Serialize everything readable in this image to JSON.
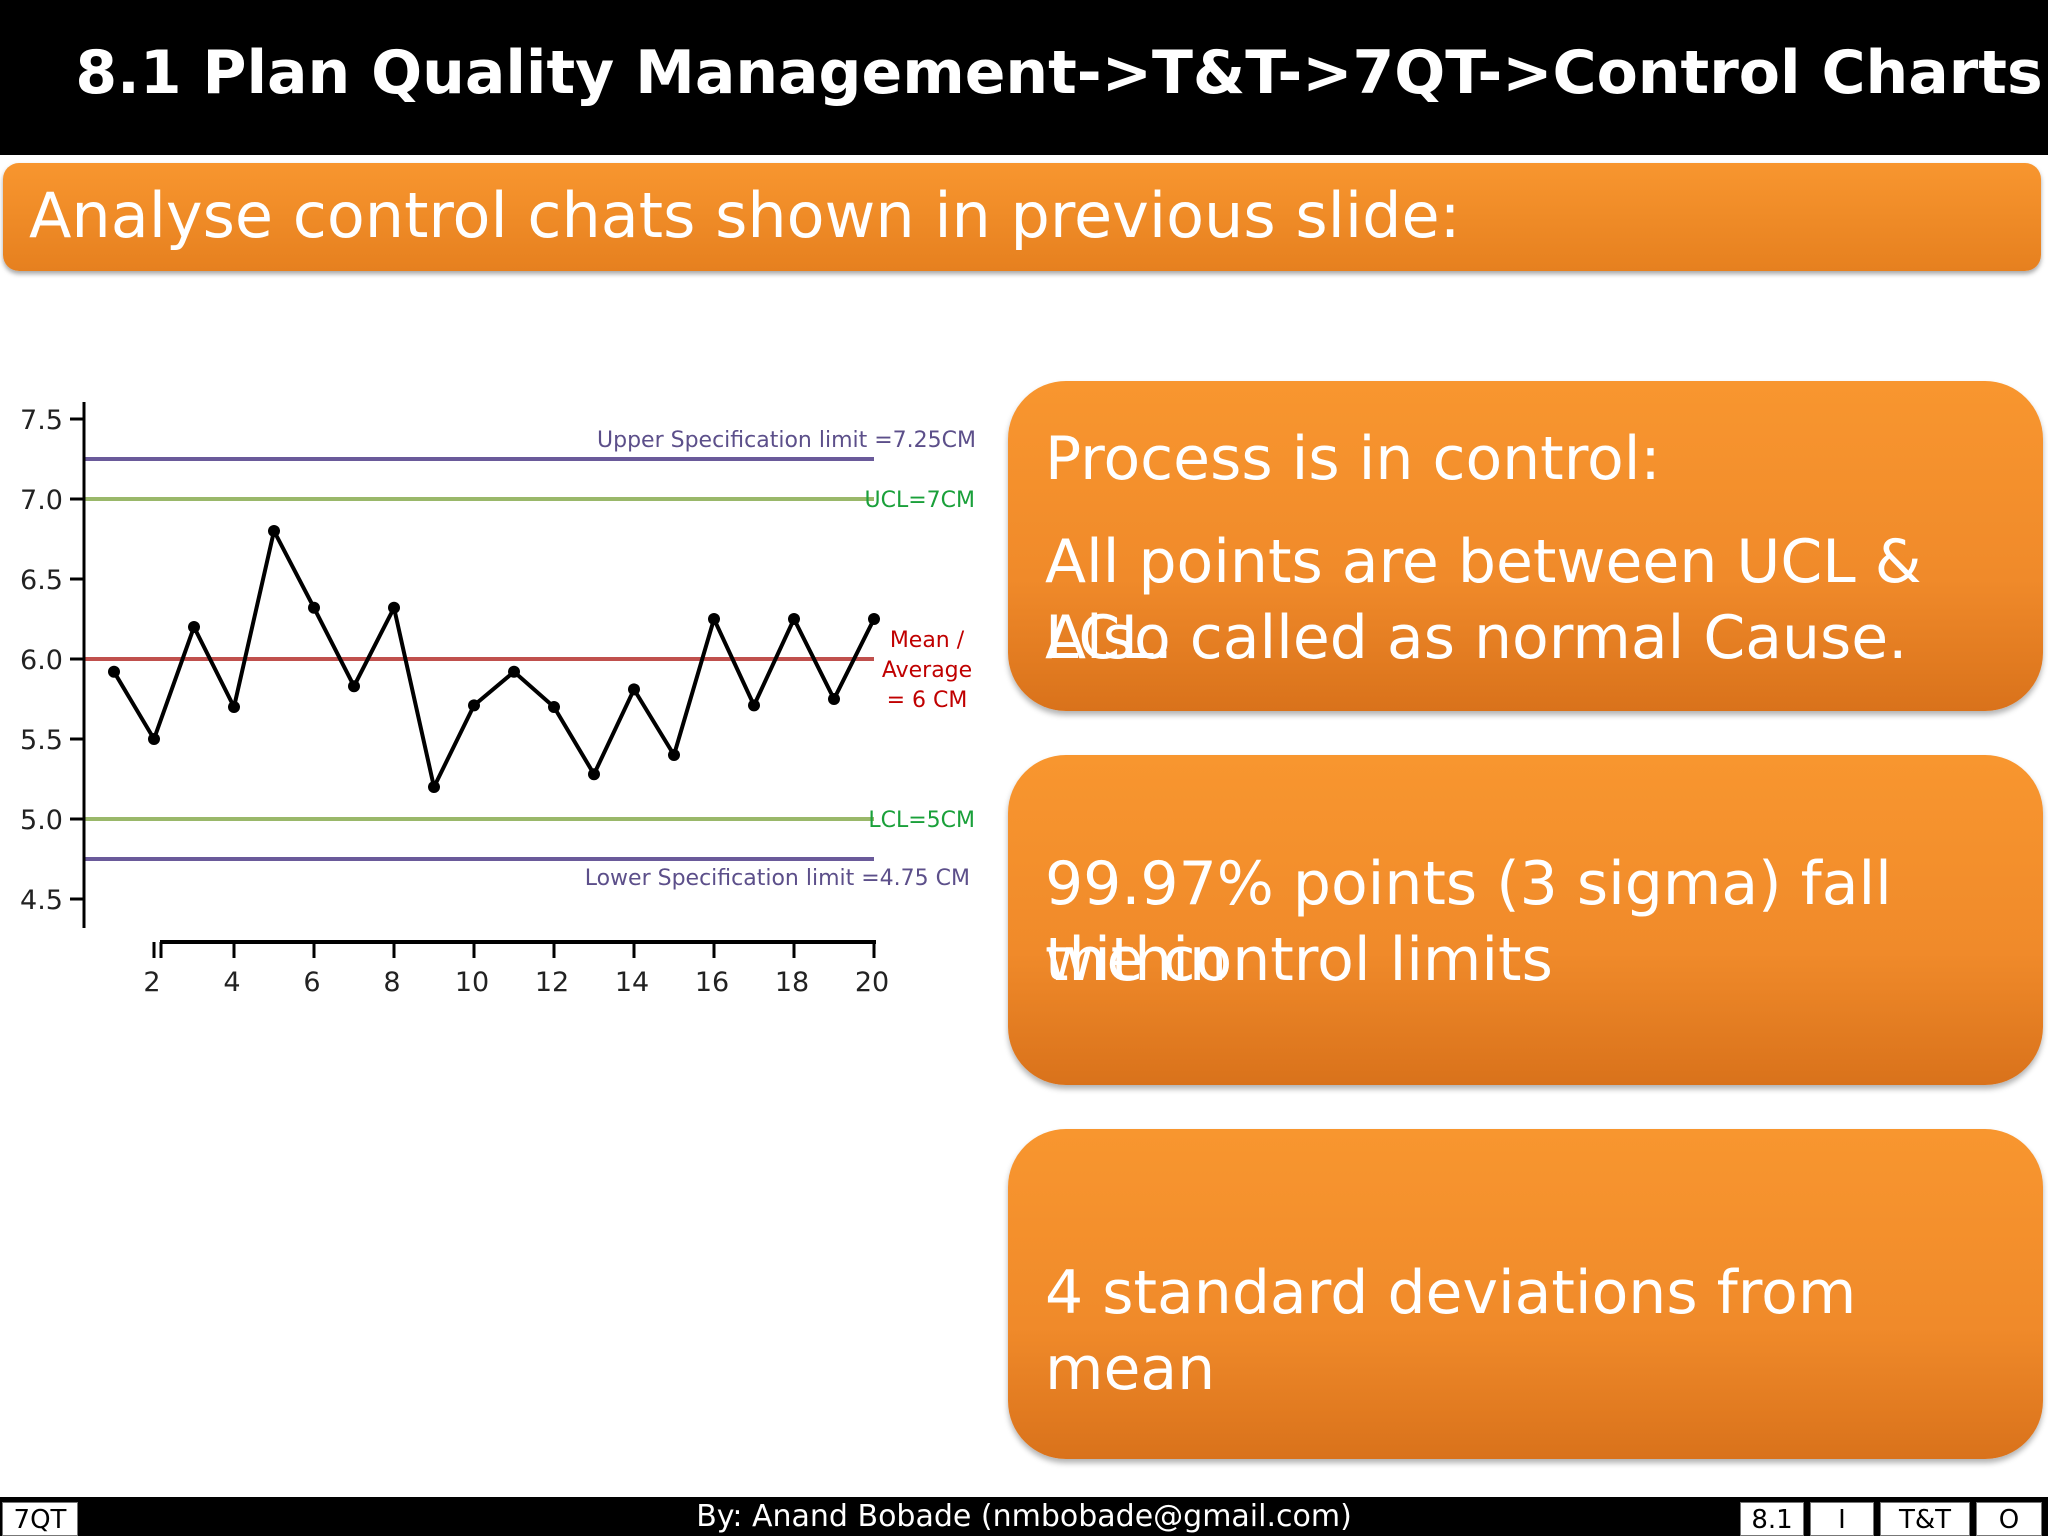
{
  "slide": {
    "title": "8.1 Plan Quality Management->T&T->7QT->Control Charts",
    "banner": "Analyse control chats shown in previous slide:",
    "box1": {
      "line1": "Process is in control:",
      "line2": "All points are between UCL & LCL.",
      "line3": "Also called as normal Cause."
    },
    "box2": {
      "line1": "99.97% points (3 sigma) fall within",
      "line2": "the control limits"
    },
    "box3": {
      "line1": "4 standard deviations from mean"
    },
    "footer": {
      "left": "7QT",
      "credit": "By: Anand Bobade (nmbobade@gmail.com)",
      "tabs": [
        "8.1",
        "I",
        "T&T",
        "O"
      ]
    }
  },
  "chart_data": {
    "type": "line",
    "x": [
      1,
      2,
      3,
      4,
      5,
      6,
      7,
      8,
      9,
      10,
      11,
      12,
      13,
      14,
      15,
      16,
      17,
      18,
      19,
      20
    ],
    "values": [
      5.92,
      5.5,
      6.2,
      5.7,
      6.8,
      6.32,
      5.83,
      6.32,
      5.2,
      5.71,
      5.92,
      5.7,
      5.28,
      5.81,
      5.4,
      6.25,
      5.71,
      6.25,
      5.75,
      6.25
    ],
    "xticks": [
      2,
      4,
      6,
      8,
      10,
      12,
      14,
      16,
      18,
      20
    ],
    "yticks": [
      "4.5",
      "5.0",
      "5.5",
      "6.0",
      "6.5",
      "7.0",
      "7.5"
    ],
    "ylim": [
      4.5,
      7.5
    ],
    "xlim": [
      1,
      20
    ],
    "reference_lines": [
      {
        "value": 7.25,
        "label": "Upper Specification limit =7.25CM",
        "color": "#6a5a9a"
      },
      {
        "value": 7.0,
        "label": "UCL=7CM",
        "color": "#9ab86a"
      },
      {
        "value": 6.0,
        "label": "Mean /|Average|= 6 CM",
        "color": "#c0504d"
      },
      {
        "value": 5.0,
        "label": "LCL=5CM",
        "color": "#9ab86a"
      },
      {
        "value": 4.75,
        "label": "Lower Specification limit =4.75 CM",
        "color": "#6a5a9a"
      }
    ],
    "label_colors": {
      "spec": "#5c4f8a",
      "control": "#1aa03a",
      "mean": "#c00000"
    }
  }
}
